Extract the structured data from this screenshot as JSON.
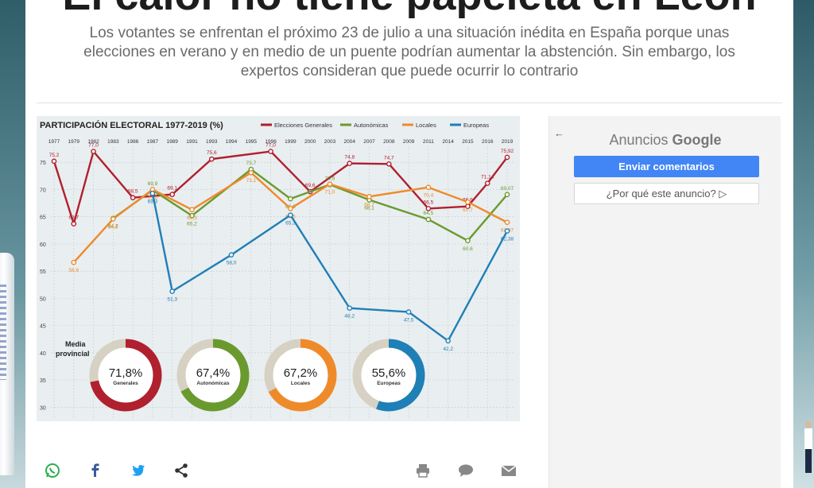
{
  "article": {
    "headline": "El calor no tiene papeleta en León",
    "subtitle": "Los votantes se enfrentan el próximo 23 de julio a una situación inédita en España porque unas elecciones en verano y en medio de un puente podrían aumentar la abstención. Sin embargo, los expertos consideran que puede ocurrir lo contrario"
  },
  "ads": {
    "back_icon": "arrow-left-icon",
    "label_prefix": "Anuncios",
    "label_brand": "Google",
    "primary_button": "Enviar comentarios",
    "secondary_button": "¿Por qué este anuncio? ▷"
  },
  "social": {
    "icons": [
      "whatsapp-icon",
      "facebook-icon",
      "twitter-icon",
      "share-icon",
      "print-icon",
      "comment-icon",
      "mail-icon"
    ]
  },
  "colors": {
    "generales": "#b0202e",
    "autonomicas": "#6a9a2e",
    "locales": "#ef8a2a",
    "europeas": "#1f7fb7",
    "ad_button": "#4285f4"
  },
  "chart_data": {
    "type": "line",
    "title": "PARTICIPACIÓN ELECTORAL 1977-2019 (%)",
    "x": [
      "1977",
      "1979",
      "1982",
      "1983",
      "1986",
      "1987",
      "1989",
      "1991",
      "1993",
      "1994",
      "1995",
      "1996",
      "1999",
      "2000",
      "2003",
      "2004",
      "2007",
      "2008",
      "2009",
      "2011",
      "2014",
      "2015",
      "2016",
      "2019"
    ],
    "ylim": [
      28,
      80
    ],
    "yticks": [
      "75",
      "70",
      "65",
      "60",
      "55",
      "50",
      "45",
      "40",
      "35",
      "30"
    ],
    "grid": true,
    "legend_position": "top",
    "series": [
      {
        "name": "Elecciones Generales",
        "points": [
          [
            "1977",
            75.2
          ],
          [
            "1979",
            63.7
          ],
          [
            "1982",
            77.0
          ],
          [
            "1986",
            68.5
          ],
          [
            "1989",
            69.1
          ],
          [
            "1993",
            75.6
          ],
          [
            "1996",
            77.0
          ],
          [
            "2000",
            69.6
          ],
          [
            "2004",
            74.8
          ],
          [
            "2008",
            74.7
          ],
          [
            "2011",
            66.5
          ],
          [
            "2015",
            66.9
          ],
          [
            "2016",
            71.14
          ],
          [
            "2019",
            75.92
          ]
        ],
        "labels": [
          "75,2",
          "63,7",
          "77,0",
          "68,5",
          "69,1",
          "75,6",
          "77,0",
          "69,6",
          "74,8",
          "74,7",
          "66,5",
          "66,9",
          "71,14",
          "75,92"
        ]
      },
      {
        "name": "Autonómicas",
        "points": [
          [
            "1983",
            64.7
          ],
          [
            "1987",
            69.9
          ],
          [
            "1991",
            65.2
          ],
          [
            "1995",
            73.7
          ],
          [
            "1999",
            68.3
          ],
          [
            "2003",
            70.9
          ],
          [
            "2007",
            68.1
          ],
          [
            "2011",
            64.5
          ],
          [
            "2015",
            60.6
          ],
          [
            "2019",
            69.07
          ]
        ],
        "labels": [
          "64,7",
          "69,9",
          "65,2",
          "73,7",
          "68,3",
          "70,9",
          "68,1",
          "64,5",
          "60,6",
          "69,07"
        ]
      },
      {
        "name": "Locales",
        "points": [
          [
            "1979",
            56.6
          ],
          [
            "1983",
            64.6
          ],
          [
            "1987",
            70.0
          ],
          [
            "1991",
            66.3
          ],
          [
            "1995",
            73.1
          ],
          [
            "1999",
            66.5
          ],
          [
            "2003",
            71.0
          ],
          [
            "2007",
            68.7
          ],
          [
            "2011",
            70.4
          ],
          [
            "2015",
            67.7
          ],
          [
            "2019",
            63.97
          ]
        ],
        "labels": [
          "56,6",
          "64,6",
          "70,0",
          "66,3",
          "73,1",
          "66,5",
          "71,0",
          "68,7",
          "70,4",
          "67,7",
          "63,97"
        ]
      },
      {
        "name": "Europeas",
        "points": [
          [
            "1987",
            69.3
          ],
          [
            "1989",
            51.3
          ],
          [
            "1994",
            58.0
          ],
          [
            "1999",
            65.3
          ],
          [
            "2004",
            48.2
          ],
          [
            "2009",
            47.5
          ],
          [
            "2014",
            42.2
          ],
          [
            "2019",
            62.38
          ]
        ],
        "labels": [
          "69,3",
          "51,3",
          "58,0",
          "65,3",
          "48,2",
          "47,5",
          "42,2",
          "62,38"
        ]
      }
    ],
    "annotation": "Media provincial",
    "donuts": [
      {
        "label": "Generales",
        "value": 71.8,
        "text": "71,8%",
        "color": "#b0202e"
      },
      {
        "label": "Autonómicas",
        "value": 67.4,
        "text": "67,4%",
        "color": "#6a9a2e"
      },
      {
        "label": "Locales",
        "value": 67.2,
        "text": "67,2%",
        "color": "#ef8a2a"
      },
      {
        "label": "Europeas",
        "value": 55.6,
        "text": "55,6%",
        "color": "#1f7fb7"
      }
    ]
  }
}
